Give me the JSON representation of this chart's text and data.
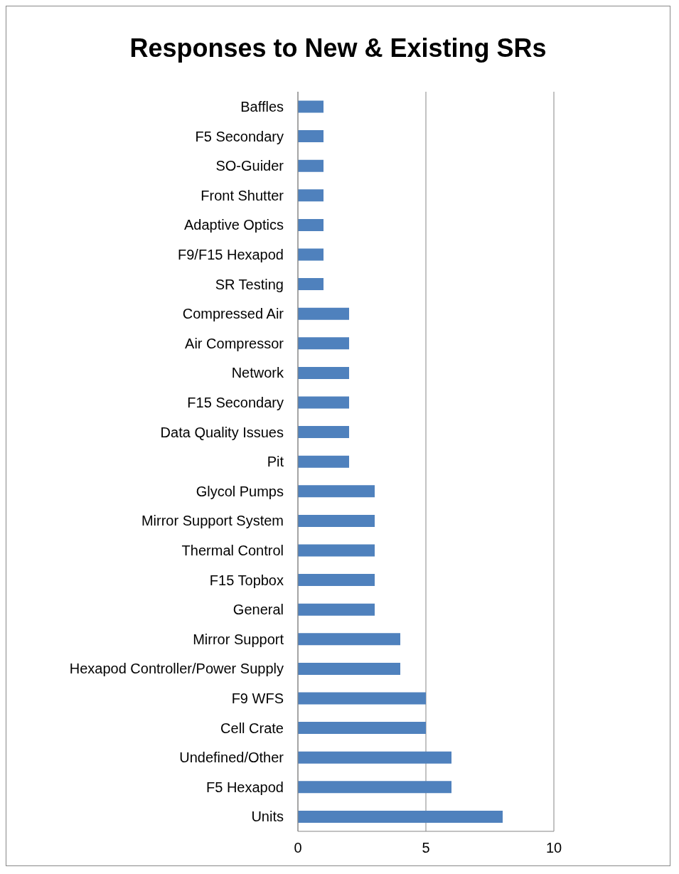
{
  "chart_data": {
    "type": "bar",
    "title": "Responses to New & Existing SRs",
    "orientation": "horizontal",
    "categories": [
      "Baffles",
      "F5 Secondary",
      "SO-Guider",
      "Front Shutter",
      "Adaptive Optics",
      "F9/F15 Hexapod",
      "SR Testing",
      "Compressed Air",
      "Air Compressor",
      "Network",
      "F15 Secondary",
      "Data Quality Issues",
      "Pit",
      "Glycol Pumps",
      "Mirror Support System",
      "Thermal Control",
      "F15 Topbox",
      "General",
      "Mirror Support",
      "Hexapod Controller/Power Supply",
      "F9 WFS",
      "Cell Crate",
      "Undefined/Other",
      "F5 Hexapod",
      "Units"
    ],
    "values": [
      1,
      1,
      1,
      1,
      1,
      1,
      1,
      2,
      2,
      2,
      2,
      2,
      2,
      3,
      3,
      3,
      3,
      3,
      4,
      4,
      5,
      5,
      6,
      6,
      8
    ],
    "color": "#4f81bd",
    "xlim": [
      0,
      10
    ],
    "xticks": [
      0,
      5,
      10
    ],
    "grid": "x",
    "legend": false
  }
}
